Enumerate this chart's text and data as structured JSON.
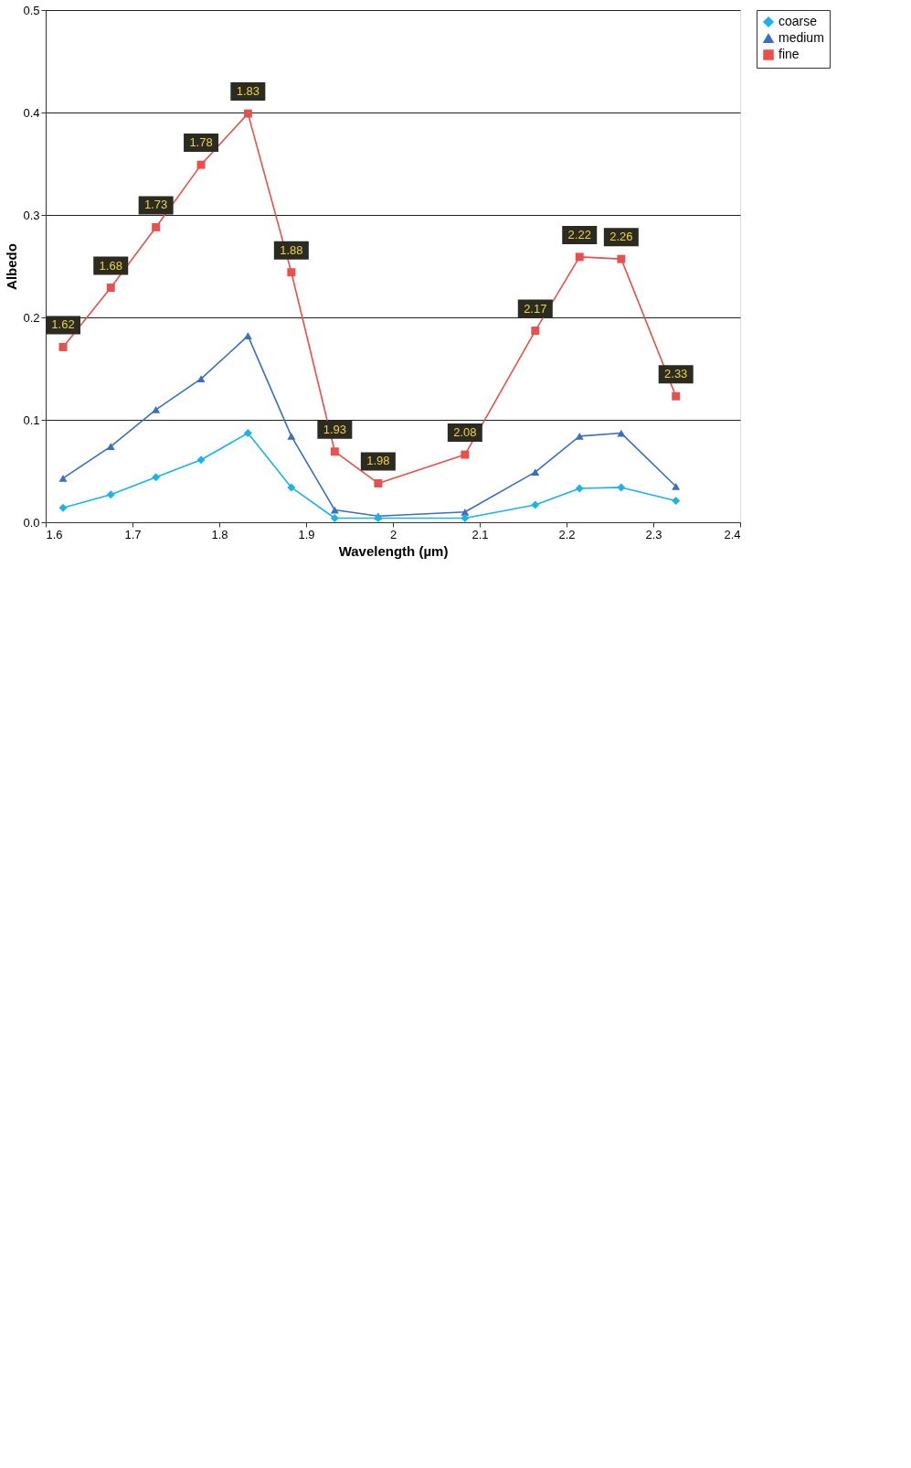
{
  "chart_data": {
    "type": "line",
    "xlabel": "Wavelength (µm)",
    "ylabel": "Albedo",
    "x": [
      1.62,
      1.675,
      1.727,
      1.779,
      1.833,
      1.883,
      1.933,
      1.983,
      2.083,
      2.164,
      2.215,
      2.263,
      2.326
    ],
    "xlim": [
      1.6,
      2.4
    ],
    "xticks": [
      1.6,
      1.7,
      1.8,
      1.9,
      2,
      2.1,
      2.2,
      2.3,
      2.4
    ],
    "ylim": [
      0,
      0.5
    ],
    "yticks": [
      {
        "value": 0,
        "label": "0.0"
      },
      0.1,
      0.2,
      0.3,
      0.4,
      0.5
    ],
    "grid": "y",
    "legend": "top right",
    "series": [
      {
        "name": "coarse",
        "color": "#19b4ea",
        "marker": "diamond",
        "values": [
          0.014,
          0.027,
          0.044,
          0.061,
          0.087,
          0.034,
          0.004,
          0.004,
          0.004,
          0.017,
          0.033,
          0.034,
          0.021
        ]
      },
      {
        "name": "medium",
        "color": "#3a6fc4",
        "marker": "triangle",
        "values": [
          0.043,
          0.074,
          0.11,
          0.14,
          0.182,
          0.084,
          0.012,
          0.006,
          0.01,
          0.049,
          0.084,
          0.087,
          0.035
        ]
      },
      {
        "name": "fine",
        "color": "#e8504e",
        "marker": "square",
        "values": [
          0.171,
          0.229,
          0.288,
          0.349,
          0.399,
          0.244,
          0.069,
          0.038,
          0.066,
          0.187,
          0.259,
          0.257,
          0.123
        ]
      }
    ],
    "annotations": [
      {
        "text": "1.62",
        "x": 1.62,
        "y": 0.171
      },
      {
        "text": "1.68",
        "x": 1.675,
        "y": 0.229
      },
      {
        "text": "1.73",
        "x": 1.727,
        "y": 0.288
      },
      {
        "text": "1.78",
        "x": 1.779,
        "y": 0.349
      },
      {
        "text": "1.83",
        "x": 1.833,
        "y": 0.399
      },
      {
        "text": "1.88",
        "x": 1.883,
        "y": 0.244
      },
      {
        "text": "1.93",
        "x": 1.933,
        "y": 0.069
      },
      {
        "text": "1.98",
        "x": 1.983,
        "y": 0.038
      },
      {
        "text": "2.08",
        "x": 2.083,
        "y": 0.066
      },
      {
        "text": "2.17",
        "x": 2.164,
        "y": 0.187
      },
      {
        "text": "2.22",
        "x": 2.215,
        "y": 0.259
      },
      {
        "text": "2.26",
        "x": 2.263,
        "y": 0.257
      },
      {
        "text": "2.33",
        "x": 2.326,
        "y": 0.123
      }
    ]
  }
}
